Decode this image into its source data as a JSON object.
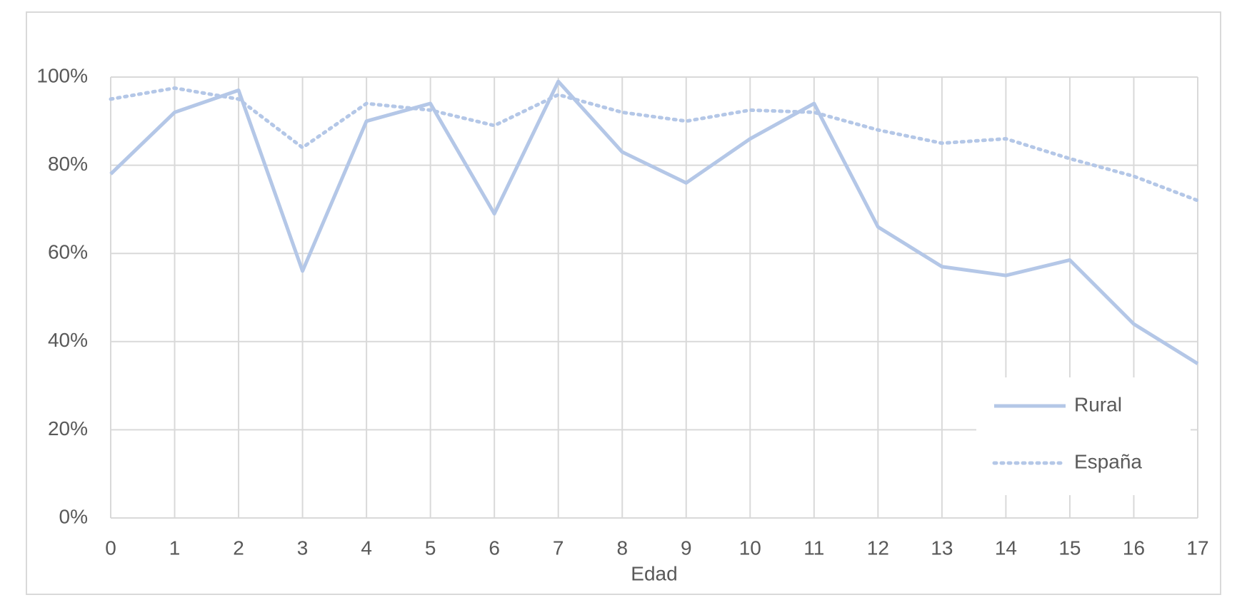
{
  "chart_data": {
    "type": "line",
    "x_label": "Edad",
    "x": [
      0,
      1,
      2,
      3,
      4,
      5,
      6,
      7,
      8,
      9,
      10,
      11,
      12,
      13,
      14,
      15,
      16,
      17
    ],
    "series": [
      {
        "name": "Rural",
        "color": "#b4c7e7",
        "style": "solid",
        "values": [
          78,
          92,
          97,
          56,
          90,
          94,
          69,
          99,
          83,
          76,
          86,
          94,
          66,
          57,
          55,
          58.5,
          44,
          35
        ]
      },
      {
        "name": "España",
        "color": "#b4c7e7",
        "style": "dotted",
        "values": [
          95,
          97.5,
          95,
          84,
          94,
          92.5,
          89,
          96,
          92,
          90,
          92.5,
          92,
          88,
          85,
          86,
          81.5,
          77.5,
          72
        ]
      }
    ],
    "xlim": [
      0,
      17
    ],
    "xticks": [
      0,
      1,
      2,
      3,
      4,
      5,
      6,
      7,
      8,
      9,
      10,
      11,
      12,
      13,
      14,
      15,
      16,
      17
    ],
    "ylim": [
      0,
      100
    ],
    "yticks": [
      {
        "value": 0,
        "label": "0%"
      },
      {
        "value": 20,
        "label": "20%"
      },
      {
        "value": 40,
        "label": "40%"
      },
      {
        "value": 60,
        "label": "60%"
      },
      {
        "value": 80,
        "label": "80%"
      },
      {
        "value": 100,
        "label": "100%"
      }
    ],
    "grid": true,
    "legend": "lower right"
  }
}
